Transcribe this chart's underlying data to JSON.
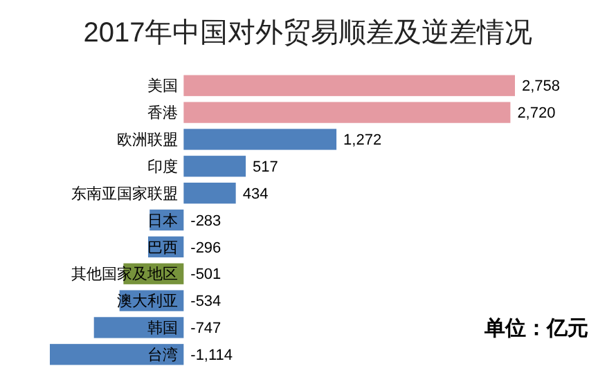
{
  "chart_data": {
    "type": "bar",
    "orientation": "horizontal",
    "title": "2017年中国对外贸易顺差及逆差情况",
    "categories": [
      "美国",
      "香港",
      "欧洲联盟",
      "印度",
      "东南亚国家联盟",
      "日本",
      "巴西",
      "其他国家及地区",
      "澳大利亚",
      "韩国",
      "台湾"
    ],
    "values": [
      2758,
      2720,
      1272,
      517,
      434,
      -283,
      -296,
      -501,
      -534,
      -747,
      -1114
    ],
    "value_labels": [
      "2,758",
      "2,720",
      "1,272",
      "517",
      "434",
      "-283",
      "-296",
      "-501",
      "-534",
      "-747",
      "-1,114"
    ],
    "colors": [
      "#e59aa2",
      "#e59aa2",
      "#4f81bd",
      "#4f81bd",
      "#4f81bd",
      "#4f81bd",
      "#4f81bd",
      "#77933c",
      "#4f81bd",
      "#4f81bd",
      "#4f81bd"
    ],
    "annotations": [
      "单位：亿元"
    ]
  }
}
